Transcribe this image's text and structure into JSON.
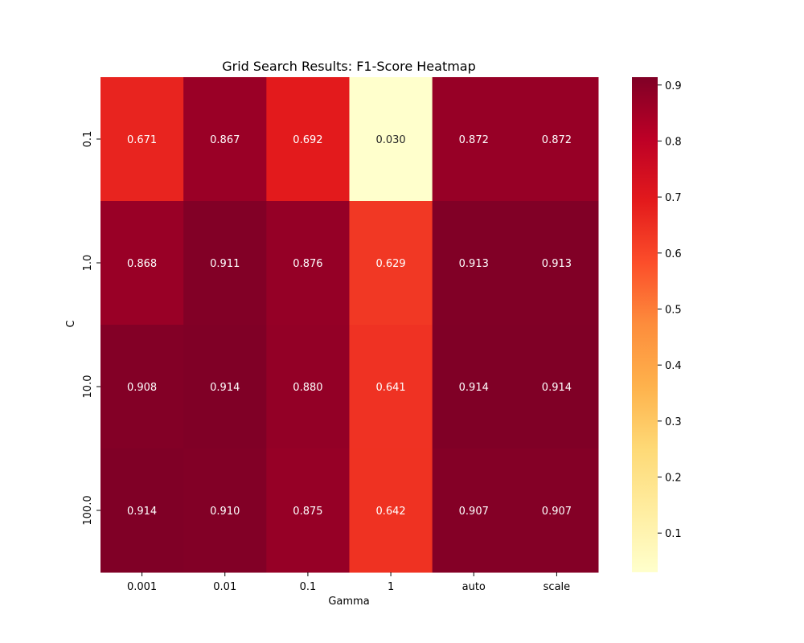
{
  "chart_data": {
    "type": "heatmap",
    "title": "Grid Search Results: F1-Score Heatmap",
    "xlabel": "Gamma",
    "ylabel": "C",
    "x_categories": [
      "0.001",
      "0.01",
      "0.1",
      "1",
      "auto",
      "scale"
    ],
    "y_categories": [
      "0.1",
      "1.0",
      "10.0",
      "100.0"
    ],
    "values": [
      [
        0.671,
        0.867,
        0.692,
        0.03,
        0.872,
        0.872
      ],
      [
        0.868,
        0.911,
        0.876,
        0.629,
        0.913,
        0.913
      ],
      [
        0.908,
        0.914,
        0.88,
        0.641,
        0.914,
        0.914
      ],
      [
        0.914,
        0.91,
        0.875,
        0.642,
        0.907,
        0.907
      ]
    ],
    "value_labels": [
      [
        "0.671",
        "0.867",
        "0.692",
        "0.030",
        "0.872",
        "0.872"
      ],
      [
        "0.868",
        "0.911",
        "0.876",
        "0.629",
        "0.913",
        "0.913"
      ],
      [
        "0.908",
        "0.914",
        "0.880",
        "0.641",
        "0.914",
        "0.914"
      ],
      [
        "0.914",
        "0.910",
        "0.875",
        "0.642",
        "0.907",
        "0.907"
      ]
    ],
    "colormap": "YlOrRd",
    "colorbar": {
      "range": [
        0.03,
        0.914
      ],
      "ticks": [
        0.1,
        0.2,
        0.3,
        0.4,
        0.5,
        0.6,
        0.7,
        0.8,
        0.9
      ],
      "tick_labels": [
        "0.1",
        "0.2",
        "0.3",
        "0.4",
        "0.5",
        "0.6",
        "0.7",
        "0.8",
        "0.9"
      ],
      "position": "right"
    },
    "grid": false
  }
}
